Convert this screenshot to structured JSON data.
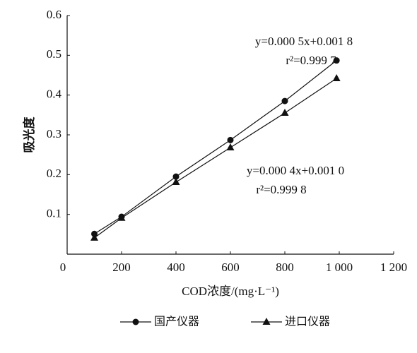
{
  "chart_data": {
    "type": "line",
    "xlabel": "COD浓度/(mg·L⁻¹)",
    "ylabel": "吸光度",
    "xlim": [
      0,
      1200
    ],
    "xticks": [
      0,
      200,
      400,
      600,
      800,
      {
        "value": 1000,
        "label": "1 000"
      },
      {
        "value": 1200,
        "label": "1 200"
      }
    ],
    "ylim": [
      0,
      0.6
    ],
    "yticks": [
      0,
      0.1,
      0.2,
      0.3,
      0.4,
      0.5,
      0.6
    ],
    "series": [
      {
        "name": "国产仪器",
        "marker": "circle",
        "color": "#111111",
        "x": [
          100,
          200,
          400,
          600,
          800,
          990
        ],
        "values": [
          0.051,
          0.094,
          0.195,
          0.287,
          0.385,
          0.487
        ]
      },
      {
        "name": "进口仪器",
        "marker": "triangle",
        "color": "#111111",
        "x": [
          100,
          200,
          400,
          600,
          800,
          990
        ],
        "values": [
          0.041,
          0.091,
          0.181,
          0.268,
          0.355,
          0.442
        ]
      }
    ],
    "annotations": [
      "y=0.000 5x+0.001 8",
      "r²=0.999 7",
      "y=0.000 4x+0.001 0",
      "r²=0.999 8"
    ],
    "legend": "bottom"
  }
}
